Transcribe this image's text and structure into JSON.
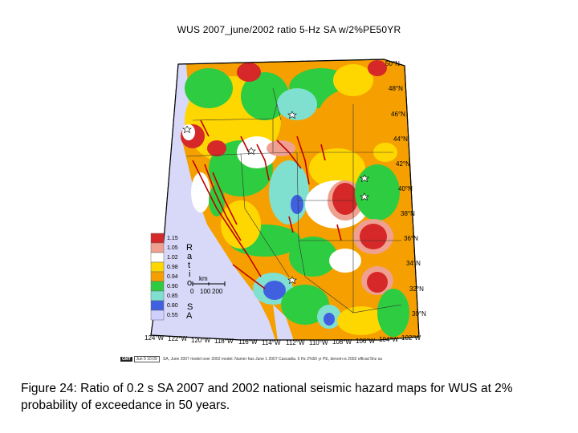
{
  "title": "WUS 2007_june/2002 ratio 5-Hz SA w/2%PE50YR",
  "lat_labels": [
    "50°N",
    "48°N",
    "46°N",
    "44°N",
    "42°N",
    "40°N",
    "38°N",
    "36°N",
    "34°N",
    "32°N",
    "30°N"
  ],
  "lon_labels": [
    "124°W",
    "122°W",
    "120°W",
    "118°W",
    "116°W",
    "114°W",
    "112°W",
    "110°W",
    "108°W",
    "106°W",
    "104°W",
    "102°W"
  ],
  "legend": {
    "title_letters": [
      "R",
      "a",
      "t",
      "i",
      "o",
      "S",
      "A"
    ],
    "entries": [
      {
        "label": "1.15",
        "color": "#d62828"
      },
      {
        "label": "1.05",
        "color": "#f0a090"
      },
      {
        "label": "1.02",
        "color": "#ffffff"
      },
      {
        "label": "0.98",
        "color": "#ffd700"
      },
      {
        "label": "0.94",
        "color": "#f5a000"
      },
      {
        "label": "0.90",
        "color": "#2ecc40"
      },
      {
        "label": "0.85",
        "color": "#7fe0d0"
      },
      {
        "label": "0.80",
        "color": "#4060e0"
      },
      {
        "label": "0.55",
        "color": "#d0d0ff"
      }
    ]
  },
  "scale_bar": {
    "unit": "km",
    "ticks": [
      "0",
      "100",
      "200"
    ]
  },
  "footer": {
    "logo": "GMT",
    "date": "Jun 5 10:09",
    "text": "SA, June 2007 model over 2002 model. Numer has June 1 2007 Cascadia. 5 Hz 2%50 yr PE, denom is 2002 official 5hz sa"
  },
  "caption": "Figure 24: Ratio of 0.2 s SA 2007 and 2002 national seismic hazard maps for WUS at 2% probability of exceedance in 50 years.",
  "colors": {
    "ocean": "#d8d8f8",
    "high": "#d62828",
    "mid_high": "#f0a090",
    "neutral": "#ffffff",
    "yellow": "#ffd700",
    "orange": "#f5a000",
    "green": "#2ecc40",
    "cyan": "#7fe0d0",
    "blue": "#4060e0"
  }
}
